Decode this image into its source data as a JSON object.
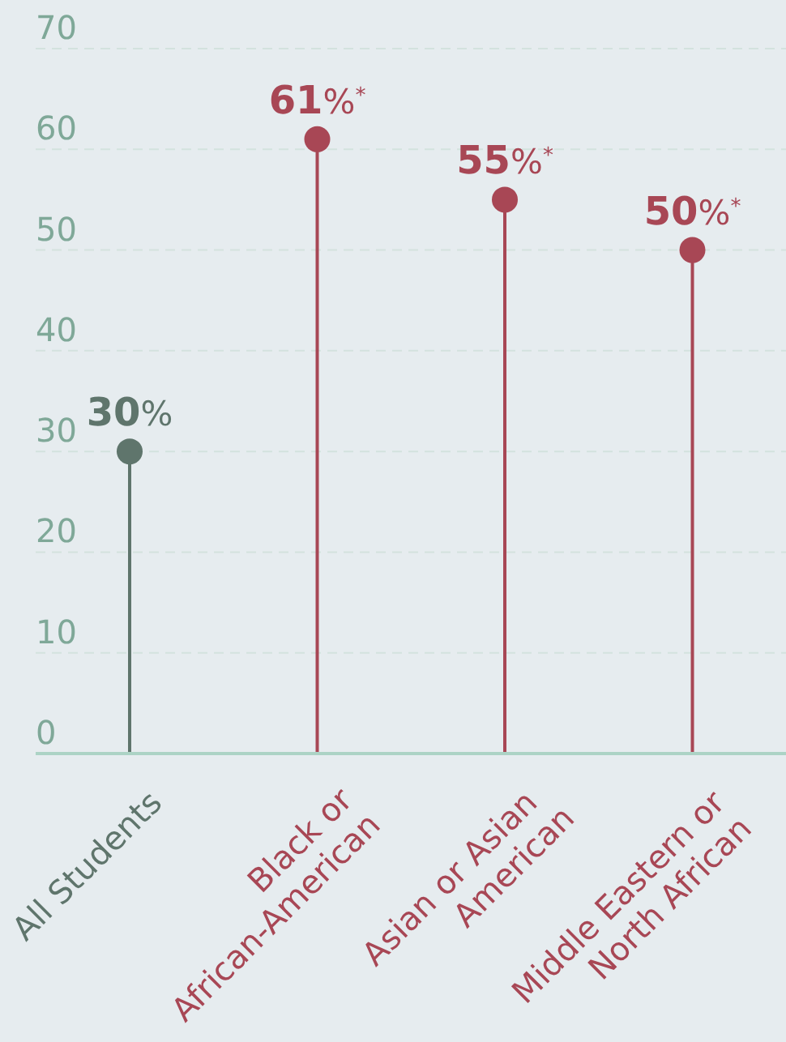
{
  "chart_data": {
    "type": "lollipop",
    "categories": [
      "All Students",
      "Black or\nAfrican-American",
      "Asian or Asian\nAmerican",
      "Middle Eastern or\nNorth African"
    ],
    "values": [
      30,
      61,
      55,
      50
    ],
    "colors": [
      "#5f756c",
      "#a84755",
      "#a84755",
      "#a84755"
    ],
    "value_labels": [
      "30%",
      "61%$^{*}$",
      "55%$^{*}$",
      "50%$^{*}$"
    ],
    "ylim": [
      0,
      70
    ],
    "yticks": [
      0,
      10,
      20,
      30,
      40,
      50,
      60,
      70
    ],
    "grid": "y"
  }
}
